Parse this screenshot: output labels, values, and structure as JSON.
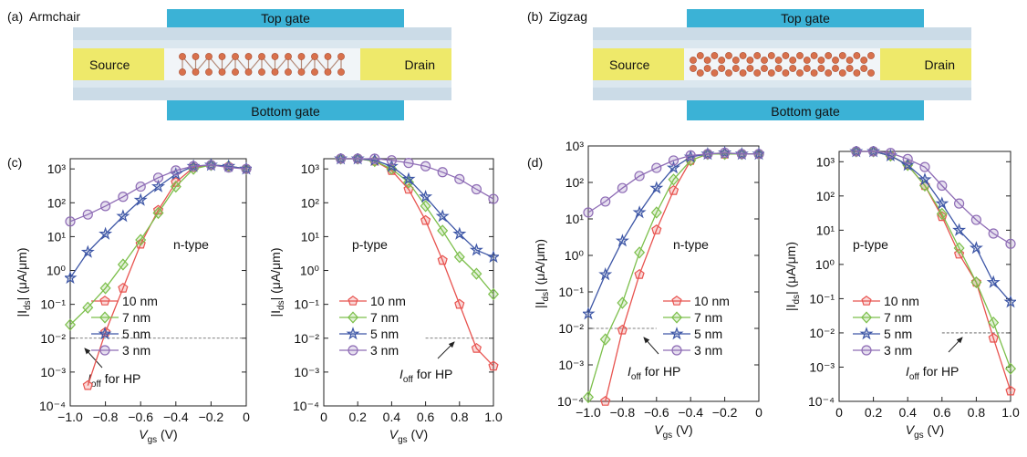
{
  "panel_labels": [
    "(a)",
    "(b)",
    "(c)",
    "(d)"
  ],
  "diagrams": [
    {
      "title": "Armchair",
      "title_color": "#e8231e",
      "top_gate": "Top gate",
      "bottom_gate": "Bottom gate",
      "source": "Source",
      "drain": "Drain"
    },
    {
      "title": "Zigzag",
      "title_color": "#9b30e0",
      "top_gate": "Top gate",
      "bottom_gate": "Bottom gate",
      "source": "Source",
      "drain": "Drain"
    }
  ],
  "chart_data": [
    {
      "type": "line",
      "log_y": true,
      "legend": "lower right",
      "x_label": [
        "V",
        "gs",
        " (V)"
      ],
      "y_label": [
        "|I",
        "ds",
        "| (μA/μm)"
      ],
      "annotation": "n-type",
      "annotation_color": "#e8231e",
      "hline": 0.01,
      "hline_note": [
        "I",
        "off",
        " for HP"
      ],
      "xlim": [
        -1,
        0
      ],
      "ylim": [
        0.0001,
        2000
      ],
      "xticks": [
        {
          "value": -1,
          "label": "−1.0"
        },
        {
          "value": -0.8,
          "label": "−0.8"
        },
        {
          "value": -0.6,
          "label": "−0.6"
        },
        {
          "value": -0.4,
          "label": "−0.4"
        },
        {
          "value": -0.2,
          "label": "−0.2"
        },
        0
      ],
      "yticks": [
        {
          "value": 0.0001,
          "label": "10⁻⁴"
        },
        {
          "value": 0.001,
          "label": "10⁻³"
        },
        {
          "value": 0.01,
          "label": "10⁻²"
        },
        {
          "value": 0.1,
          "label": "10⁻¹"
        },
        {
          "value": 1,
          "label": "10⁰"
        },
        {
          "value": 10,
          "label": "10¹"
        },
        {
          "value": 100,
          "label": "10²"
        },
        {
          "value": 1000,
          "label": "10³"
        }
      ],
      "x": [
        -1,
        -0.9,
        -0.8,
        -0.7,
        -0.6,
        -0.5,
        -0.4,
        -0.3,
        -0.2,
        -0.1,
        0
      ],
      "series": [
        {
          "name": "10 nm",
          "color": "#e8534f",
          "marker": "pentagon",
          "values": [
            null,
            0.0004,
            0.015,
            0.3,
            6,
            60,
            400,
            1100,
            1300,
            1200,
            1000
          ]
        },
        {
          "name": "7 nm",
          "color": "#7cbf4b",
          "marker": "diamond",
          "values": [
            0.025,
            0.08,
            0.3,
            1.5,
            8,
            50,
            300,
            1000,
            1300,
            1200,
            1000
          ]
        },
        {
          "name": "5 nm",
          "color": "#3d56a6",
          "marker": "star",
          "values": [
            0.6,
            3.5,
            12,
            40,
            120,
            300,
            700,
            1200,
            1300,
            1200,
            1000
          ]
        },
        {
          "name": "3 nm",
          "color": "#8e6cb5",
          "marker": "circle",
          "values": [
            28,
            45,
            80,
            150,
            300,
            550,
            900,
            1200,
            1300,
            1100,
            1000
          ]
        }
      ]
    },
    {
      "type": "line",
      "log_y": true,
      "legend": "lower left",
      "x_label": [
        "V",
        "gs",
        " (V)"
      ],
      "y_label": [
        "|I",
        "ds",
        "| (μA/μm)"
      ],
      "annotation": "p-type",
      "annotation_color": "#e8231e",
      "hline": 0.01,
      "hline_note": [
        "I",
        "off",
        " for HP"
      ],
      "xlim": [
        0,
        1
      ],
      "ylim": [
        0.0001,
        2000
      ],
      "xticks": [
        0,
        0.2,
        0.4,
        0.6,
        0.8,
        {
          "value": 1,
          "label": "1.0"
        }
      ],
      "yticks": [
        {
          "value": 0.0001,
          "label": "10⁻⁴"
        },
        {
          "value": 0.001,
          "label": "10⁻³"
        },
        {
          "value": 0.01,
          "label": "10⁻²"
        },
        {
          "value": 0.1,
          "label": "10⁻¹"
        },
        {
          "value": 1,
          "label": "10⁰"
        },
        {
          "value": 10,
          "label": "10¹"
        },
        {
          "value": 100,
          "label": "10²"
        },
        {
          "value": 1000,
          "label": "10³"
        }
      ],
      "x": [
        0.1,
        0.2,
        0.3,
        0.4,
        0.5,
        0.6,
        0.7,
        0.8,
        0.9,
        1
      ],
      "series": [
        {
          "name": "10 nm",
          "color": "#e8534f",
          "marker": "pentagon",
          "values": [
            2000,
            2000,
            1700,
            900,
            250,
            30,
            2,
            0.1,
            0.005,
            0.0015
          ]
        },
        {
          "name": "7 nm",
          "color": "#7cbf4b",
          "marker": "diamond",
          "values": [
            2000,
            2000,
            1700,
            1000,
            400,
            80,
            15,
            2.5,
            0.8,
            0.2
          ]
        },
        {
          "name": "5 nm",
          "color": "#3d56a6",
          "marker": "star",
          "values": [
            2000,
            2000,
            1800,
            1200,
            500,
            150,
            40,
            12,
            4,
            2.5
          ]
        },
        {
          "name": "3 nm",
          "color": "#8e6cb5",
          "marker": "circle",
          "values": [
            2000,
            2000,
            2000,
            1800,
            1500,
            1200,
            800,
            500,
            250,
            130
          ]
        }
      ]
    },
    {
      "type": "line",
      "log_y": true,
      "legend": "lower right",
      "x_label": [
        "V",
        "gs",
        " (V)"
      ],
      "y_label": [
        "|I",
        "ds",
        "| (μA/μm)"
      ],
      "annotation": "n-type",
      "annotation_color": "#9b30e0",
      "hline": 0.01,
      "hline_note": [
        "I",
        "off",
        " for HP"
      ],
      "xlim": [
        -1,
        0
      ],
      "ylim": [
        0.0001,
        1000
      ],
      "xticks": [
        {
          "value": -1,
          "label": "−1.0"
        },
        {
          "value": -0.8,
          "label": "−0.8"
        },
        {
          "value": -0.6,
          "label": "−0.6"
        },
        {
          "value": -0.4,
          "label": "−0.4"
        },
        {
          "value": -0.2,
          "label": "−0.2"
        },
        0
      ],
      "yticks": [
        {
          "value": 0.0001,
          "label": "10⁻⁴"
        },
        {
          "value": 0.001,
          "label": "10⁻³"
        },
        {
          "value": 0.01,
          "label": "10⁻²"
        },
        {
          "value": 0.1,
          "label": "10⁻¹"
        },
        {
          "value": 1,
          "label": "10⁰"
        },
        {
          "value": 10,
          "label": "10¹"
        },
        {
          "value": 100,
          "label": "10²"
        },
        {
          "value": 1000,
          "label": "10³"
        }
      ],
      "x": [
        -1,
        -0.9,
        -0.8,
        -0.7,
        -0.6,
        -0.5,
        -0.4,
        -0.3,
        -0.2,
        -0.1,
        0
      ],
      "series": [
        {
          "name": "10 nm",
          "color": "#e8534f",
          "marker": "pentagon",
          "values": [
            null,
            0.0001,
            0.009,
            0.3,
            5,
            60,
            400,
            600,
            600,
            600,
            600
          ]
        },
        {
          "name": "7 nm",
          "color": "#7cbf4b",
          "marker": "diamond",
          "values": [
            0.00013,
            0.005,
            0.05,
            1.2,
            15,
            120,
            400,
            600,
            600,
            600,
            600
          ]
        },
        {
          "name": "5 nm",
          "color": "#3d56a6",
          "marker": "star",
          "values": [
            0.025,
            0.3,
            2.5,
            15,
            70,
            250,
            500,
            600,
            650,
            600,
            600
          ]
        },
        {
          "name": "3 nm",
          "color": "#8e6cb5",
          "marker": "circle",
          "values": [
            15,
            30,
            70,
            150,
            250,
            400,
            550,
            600,
            650,
            600,
            600
          ]
        }
      ]
    },
    {
      "type": "line",
      "log_y": true,
      "legend": "lower left",
      "x_label": [
        "V",
        "gs",
        " (V)"
      ],
      "y_label": [
        "|I",
        "ds",
        "| (μA/μm)"
      ],
      "annotation": "p-type",
      "annotation_color": "#9b30e0",
      "hline": 0.01,
      "hline_note": [
        "I",
        "off",
        " for HP"
      ],
      "xlim": [
        0,
        1
      ],
      "ylim": [
        0.0001,
        2000
      ],
      "xticks": [
        0,
        0.2,
        0.4,
        0.6,
        0.8,
        {
          "value": 1,
          "label": "1.0"
        }
      ],
      "yticks": [
        {
          "value": 0.0001,
          "label": "10⁻⁴"
        },
        {
          "value": 0.001,
          "label": "10⁻³"
        },
        {
          "value": 0.01,
          "label": "10⁻²"
        },
        {
          "value": 0.1,
          "label": "10⁻¹"
        },
        {
          "value": 1,
          "label": "10⁰"
        },
        {
          "value": 10,
          "label": "10¹"
        },
        {
          "value": 100,
          "label": "10²"
        },
        {
          "value": 1000,
          "label": "10³"
        }
      ],
      "x": [
        0.1,
        0.2,
        0.3,
        0.4,
        0.5,
        0.6,
        0.7,
        0.8,
        0.9,
        1
      ],
      "series": [
        {
          "name": "10 nm",
          "color": "#e8534f",
          "marker": "pentagon",
          "values": [
            2000,
            2000,
            1500,
            800,
            200,
            25,
            2,
            0.3,
            0.007,
            0.0002
          ]
        },
        {
          "name": "7 nm",
          "color": "#7cbf4b",
          "marker": "diamond",
          "values": [
            2000,
            2000,
            1500,
            800,
            200,
            30,
            3,
            0.3,
            0.02,
            0.0009
          ]
        },
        {
          "name": "5 nm",
          "color": "#3d56a6",
          "marker": "star",
          "values": [
            2000,
            2000,
            1500,
            800,
            300,
            60,
            10,
            3,
            0.3,
            0.08
          ]
        },
        {
          "name": "3 nm",
          "color": "#8e6cb5",
          "marker": "circle",
          "values": [
            2000,
            2000,
            1800,
            1200,
            700,
            200,
            60,
            20,
            8,
            4
          ]
        }
      ]
    }
  ]
}
